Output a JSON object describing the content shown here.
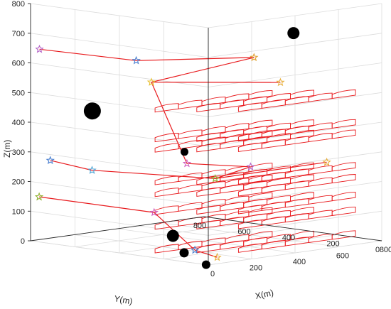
{
  "chart_data": {
    "type": "scatter3d",
    "title": "",
    "axes": {
      "x": {
        "label": "X(m)",
        "range": [
          0,
          800
        ],
        "ticks": [
          0,
          200,
          400,
          600,
          800
        ]
      },
      "y": {
        "label": "Y(m)",
        "range": [
          0,
          800
        ],
        "ticks": [
          0,
          200,
          400,
          600,
          800
        ]
      },
      "z": {
        "label": "Z(m)",
        "range": [
          0,
          800
        ],
        "ticks": [
          0,
          100,
          200,
          300,
          400,
          500,
          600,
          700,
          800
        ]
      }
    },
    "grid": true,
    "colors": {
      "strip": "#e8191c",
      "link": "#e8191c",
      "obstacle": "#000000"
    },
    "layers_z": [
      20,
      100,
      150,
      210,
      250,
      360,
      395,
      495
    ],
    "strip_rows": [
      {
        "x_start": -20,
        "x_end": 520
      },
      {
        "x_start": 80,
        "x_end": 620
      },
      {
        "x_start": 180,
        "x_end": 720
      }
    ],
    "obstacles": [
      {
        "x": 80,
        "y": 600,
        "z": 450,
        "size": 20
      },
      {
        "x": 700,
        "y": 300,
        "z": 680,
        "size": 13
      },
      {
        "x": 300,
        "y": 400,
        "z": 310,
        "size": 7
      },
      {
        "x": -40,
        "y": 120,
        "z": 90,
        "size": 13
      },
      {
        "x": -50,
        "y": 60,
        "z": 40,
        "size": 9
      },
      {
        "x": 0,
        "y": 10,
        "z": 0,
        "size": 8
      }
    ],
    "stars": [
      {
        "x": 0,
        "y": 760,
        "z": 650,
        "color": "#b565c8"
      },
      {
        "x": 180,
        "y": 500,
        "z": 620,
        "color": "#4a7fd0"
      },
      {
        "x": 600,
        "y": 380,
        "z": 600,
        "color": "#e0a030"
      },
      {
        "x": 250,
        "y": 500,
        "z": 540,
        "color": "#e8c030"
      },
      {
        "x": 640,
        "y": 300,
        "z": 520,
        "color": "#e8b040"
      },
      {
        "x": 260,
        "y": 350,
        "z": 280,
        "color": "#d060c0"
      },
      {
        "x": 50,
        "y": 760,
        "z": 270,
        "color": "#4a7fd0"
      },
      {
        "x": 130,
        "y": 650,
        "z": 240,
        "color": "#50a8d8"
      },
      {
        "x": 400,
        "y": 200,
        "z": 270,
        "color": "#b565c8"
      },
      {
        "x": 370,
        "y": 330,
        "z": 220,
        "color": "#90b030"
      },
      {
        "x": 700,
        "y": 150,
        "z": 260,
        "color": "#e8b040"
      },
      {
        "x": 60,
        "y": 820,
        "z": 140,
        "color": "#90b030"
      },
      {
        "x": 160,
        "y": 400,
        "z": 120,
        "color": "#d060c0"
      },
      {
        "x": 20,
        "y": 80,
        "z": 40,
        "color": "#4a7fd0"
      },
      {
        "x": 0,
        "y": -40,
        "z": 30,
        "color": "#e8b040"
      }
    ],
    "links": [
      [
        0,
        1
      ],
      [
        1,
        2
      ],
      [
        3,
        4
      ],
      [
        6,
        7
      ],
      [
        8,
        9
      ],
      [
        9,
        10
      ],
      [
        5,
        8
      ],
      [
        11,
        12
      ],
      [
        12,
        13
      ],
      [
        13,
        14
      ],
      [
        3,
        5
      ],
      [
        7,
        9
      ],
      [
        2,
        3
      ]
    ]
  }
}
